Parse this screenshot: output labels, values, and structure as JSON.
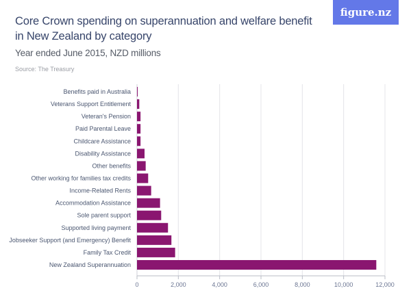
{
  "header": {
    "title": "Core Crown spending on superannuation and welfare benefit in New Zealand by category",
    "subtitle": "Year ended June 2015, NZD millions",
    "source": "Source: The Treasury",
    "logo_text": "figure.nz"
  },
  "colors": {
    "bar": "#8a1670",
    "logo_bg": "#6378e8",
    "gridline": "#e4e4e8",
    "axis": "#b8bcc6"
  },
  "chart_data": {
    "type": "bar",
    "orientation": "horizontal",
    "title": "Core Crown spending on superannuation and welfare benefit in New Zealand by category",
    "subtitle": "Year ended June 2015, NZD millions",
    "xlabel": "",
    "ylabel": "",
    "xlim": [
      0,
      12000
    ],
    "grid": true,
    "legend": "none",
    "xticks": [
      0,
      2000,
      4000,
      6000,
      8000,
      10000,
      12000
    ],
    "xtick_labels": [
      "0",
      "2,000",
      "4,000",
      "6,000",
      "8,000",
      "10,000",
      "12,000"
    ],
    "categories": [
      "Benefits paid in Australia",
      "Veterans Support Entitlement",
      "Veteran's Pension",
      "Paid Parental Leave",
      "Childcare Assistance",
      "Disability Assistance",
      "Other benefits",
      "Other working for families tax credits",
      "Income-Related Rents",
      "Accommodation Assistance",
      "Sole parent support",
      "Supported living payment",
      "Jobseeker Support (and Emergency) Benefit",
      "Family Tax Credit",
      "New Zealand Superannuation"
    ],
    "values": [
      20,
      110,
      170,
      170,
      170,
      365,
      420,
      540,
      685,
      1115,
      1170,
      1500,
      1665,
      1845,
      11580
    ]
  }
}
